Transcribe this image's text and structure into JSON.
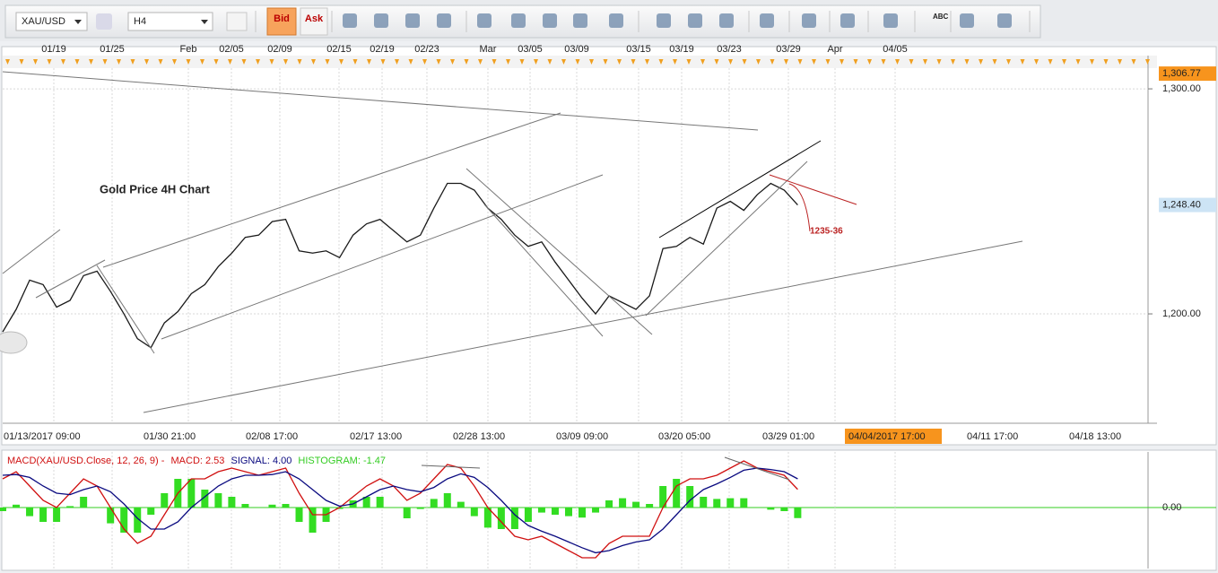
{
  "toolbar": {
    "symbol": "XAU/USD",
    "timeframe": "H4",
    "bid": "Bid",
    "ask": "Ask",
    "text_tool": "ABC"
  },
  "chart_data": [
    {
      "type": "line",
      "title": "Gold Price 4H Chart",
      "annotations": [
        "1235-36"
      ],
      "top_axis_labels": [
        "01/19",
        "01/25",
        "Feb",
        "02/05",
        "02/09",
        "02/15",
        "02/19",
        "02/23",
        "Mar",
        "03/05",
        "03/09",
        "03/15",
        "03/19",
        "03/23",
        "03/29",
        "Apr",
        "04/05"
      ],
      "x_labels": [
        "01/13/2017 09:00",
        "01/30 21:00",
        "02/08 17:00",
        "02/17 13:00",
        "02/28 13:00",
        "03/09 09:00",
        "03/20 05:00",
        "03/29 01:00",
        "04/11 17:00",
        "04/18 13:00"
      ],
      "cursor_label": "04/04/2017 17:00",
      "series": [
        {
          "color": "#1a1a1a",
          "values": [
            1192,
            1202,
            1215,
            1213,
            1203,
            1206,
            1217,
            1219,
            1210,
            1200,
            1189,
            1185,
            1196,
            1201,
            1209,
            1213,
            1221,
            1227,
            1234,
            1235,
            1241,
            1242,
            1228,
            1227,
            1228,
            1225,
            1235,
            1240,
            1242,
            1237,
            1232,
            1235,
            1247,
            1258,
            1258,
            1255,
            1247,
            1242,
            1235,
            1230,
            1232,
            1223,
            1215,
            1207,
            1200,
            1208,
            1205,
            1202,
            1208,
            1229,
            1230,
            1234,
            1231,
            1247,
            1250,
            1246,
            1253,
            1258,
            1255,
            1248.4
          ]
        }
      ],
      "xlim": [
        0,
        85
      ],
      "ylim": [
        1151.4,
        1308.4
      ],
      "yticks": [
        {
          "value": 1300,
          "label": "1,300.00"
        },
        {
          "value": 1200,
          "label": "1,200.00"
        }
      ],
      "price_labels": [
        {
          "value": 1306.77,
          "label": "1,306.77",
          "color": "#f7941d"
        },
        {
          "value": 1248.4,
          "label": "1,248.40",
          "color": "#cde4f5"
        }
      ],
      "grid": true
    },
    {
      "type": "line",
      "legend_prefix": "MACD(XAU/USD.Close, 12, 26, 9) -",
      "series": [
        {
          "name": "MACD: 2.53",
          "color": "#d01010",
          "values": [
            4,
            5,
            3,
            1,
            0,
            2,
            4,
            3,
            0,
            -3,
            -5,
            -4,
            -1,
            2,
            4,
            4,
            5,
            5.5,
            5,
            4.5,
            5,
            5.5,
            2,
            -1,
            -1,
            0,
            1.5,
            3,
            4,
            3,
            1,
            2,
            4,
            6,
            5.5,
            3,
            0,
            -2,
            -4,
            -4.5,
            -4,
            -5,
            -6,
            -7,
            -7,
            -5,
            -4,
            -4,
            -4,
            0,
            3,
            4,
            4,
            4.5,
            5.5,
            6.5,
            5.5,
            5,
            4.5,
            2.53
          ]
        },
        {
          "name": "SIGNAL: 4.00",
          "color": "#0a0a80",
          "values": [
            4.5,
            4.6,
            4.2,
            3,
            2,
            1.8,
            2.5,
            3,
            2.2,
            0.5,
            -1.5,
            -3,
            -3,
            -2,
            0,
            1.5,
            3,
            4,
            4.5,
            4.5,
            4.6,
            5,
            4,
            2.5,
            1,
            0.2,
            0.5,
            1.5,
            2.5,
            3,
            2.5,
            2.2,
            2.8,
            4,
            4.7,
            4.2,
            2.8,
            1,
            -1,
            -2.5,
            -3.3,
            -4,
            -4.8,
            -5.6,
            -6.3,
            -6,
            -5.3,
            -4.8,
            -4.5,
            -3,
            -1,
            1,
            2.5,
            3.3,
            4.2,
            5.2,
            5.5,
            5.3,
            5,
            4
          ]
        },
        {
          "name": "HISTOGRAM: -1.47",
          "color": "#33dd22",
          "values": [
            -0.5,
            0.4,
            -1.2,
            -2,
            -2,
            0.2,
            1.5,
            0,
            -2.2,
            -3.5,
            -3.5,
            -1,
            2,
            4,
            4,
            2.5,
            2,
            1.5,
            0.5,
            0,
            0.4,
            0.5,
            -2,
            -3.5,
            -2,
            -0.2,
            1,
            1.5,
            1.5,
            0,
            -1.5,
            -0.2,
            1.2,
            2,
            0.8,
            -1.2,
            -2.8,
            -3,
            -3,
            -2,
            -0.7,
            -1,
            -1.2,
            -1.4,
            -0.7,
            1,
            1.3,
            0.8,
            0.5,
            3,
            4,
            3,
            1.5,
            1.2,
            1.3,
            1.3,
            0,
            -0.3,
            -0.5,
            -1.47
          ]
        }
      ],
      "xlim": [
        0,
        85
      ],
      "ylim": [
        -8.25,
        7.5
      ],
      "yticks": [
        {
          "value": 0,
          "label": "0.00"
        }
      ]
    }
  ]
}
